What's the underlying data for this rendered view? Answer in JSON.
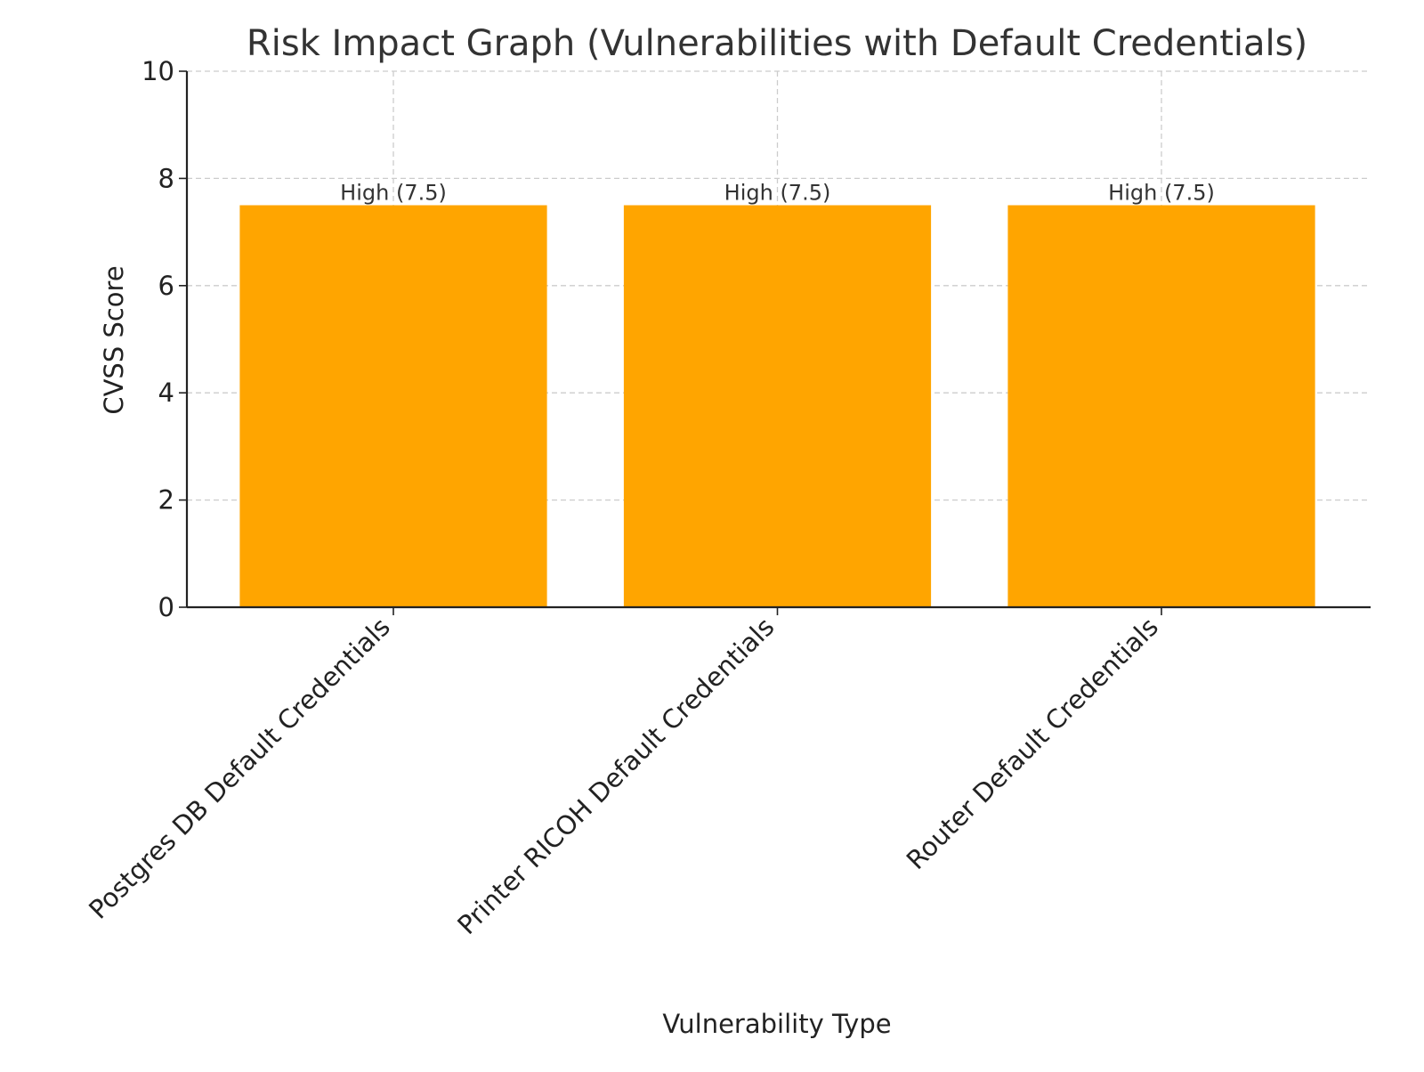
{
  "chart_data": {
    "type": "bar",
    "title": "Risk Impact Graph (Vulnerabilities with Default Credentials)",
    "xlabel": "Vulnerability Type",
    "ylabel": "CVSS Score",
    "categories": [
      "Postgres DB Default Credentials",
      "Printer RICOH Default Credentials",
      "Router Default Credentials"
    ],
    "values": [
      7.5,
      7.5,
      7.5
    ],
    "bar_labels": [
      "High (7.5)",
      "High (7.5)",
      "High (7.5)"
    ],
    "yticks": [
      "0",
      "2",
      "4",
      "6",
      "8",
      "10"
    ],
    "ylim": [
      0,
      10
    ],
    "grid": true,
    "bar_color": "#FFA500"
  }
}
